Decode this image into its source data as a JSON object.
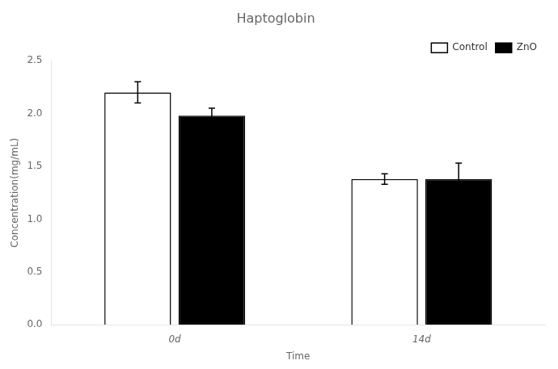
{
  "chart_data": {
    "type": "bar",
    "title": "Haptoglobin",
    "xlabel": "Time",
    "ylabel": "Concentration(mg/mL)",
    "categories": [
      "0d",
      "14d"
    ],
    "series": [
      {
        "name": "Control",
        "color": "#ffffff",
        "values": [
          2.2,
          1.38
        ],
        "errors": [
          0.1,
          0.05
        ]
      },
      {
        "name": "ZnO",
        "color": "#000000",
        "values": [
          1.98,
          1.38
        ],
        "errors": [
          0.07,
          0.15
        ]
      }
    ],
    "ylim": [
      0,
      2.5
    ],
    "yticks": [
      {
        "value": 0.0,
        "label": "0.0"
      },
      0.5,
      {
        "value": 1.0,
        "label": "1.0"
      },
      1.5,
      {
        "value": 2.0,
        "label": "2.0"
      },
      2.5
    ],
    "grid": false,
    "legend": "upper right"
  }
}
